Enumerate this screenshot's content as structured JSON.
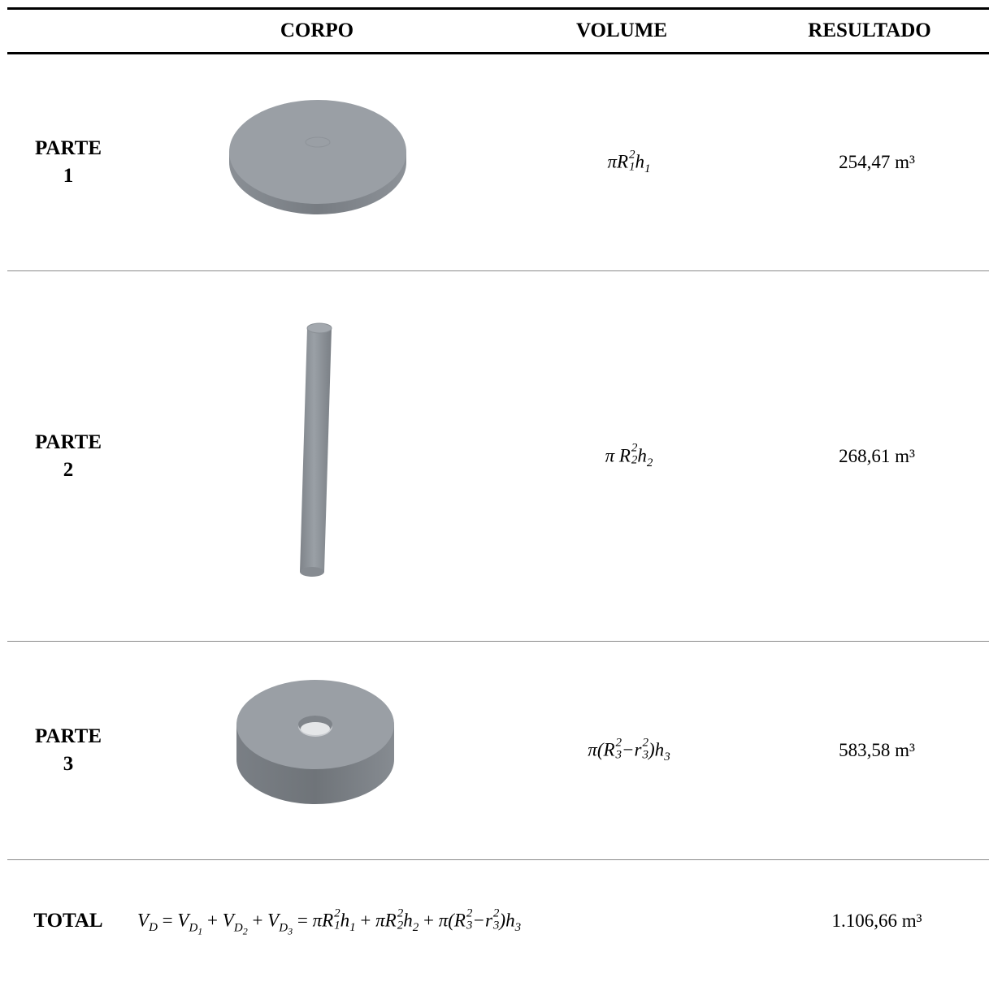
{
  "headers": {
    "corpo": "CORPO",
    "volume": "VOLUME",
    "resultado": "RESULTADO"
  },
  "rows": [
    {
      "label_line1": "PARTE",
      "label_line2": "1",
      "formula": "πR₁²h₁",
      "result": "254,47 m³",
      "shape": "thin-disc-icon"
    },
    {
      "label_line1": "PARTE",
      "label_line2": "2",
      "formula": "πR₂²h₂",
      "result": "268,61 m³",
      "shape": "cylinder-rod-icon"
    },
    {
      "label_line1": "PARTE",
      "label_line2": "3",
      "formula": "π(R₃²−r₃²)h₃",
      "result": "583,58 m³",
      "shape": "ring-disc-icon"
    }
  ],
  "total": {
    "label": "TOTAL",
    "formula": "V_D = V_D1 + V_D2 + V_D3 = πR₁²h₁ + πR₂²h₂ + π(R₃²−r₃²)h₃",
    "result": "1.106,66 m³"
  },
  "colors": {
    "shape_top": "#9a9fa5",
    "shape_side": "#7d8288",
    "rule_strong": "#000000",
    "rule_light": "#8a8a8a"
  }
}
